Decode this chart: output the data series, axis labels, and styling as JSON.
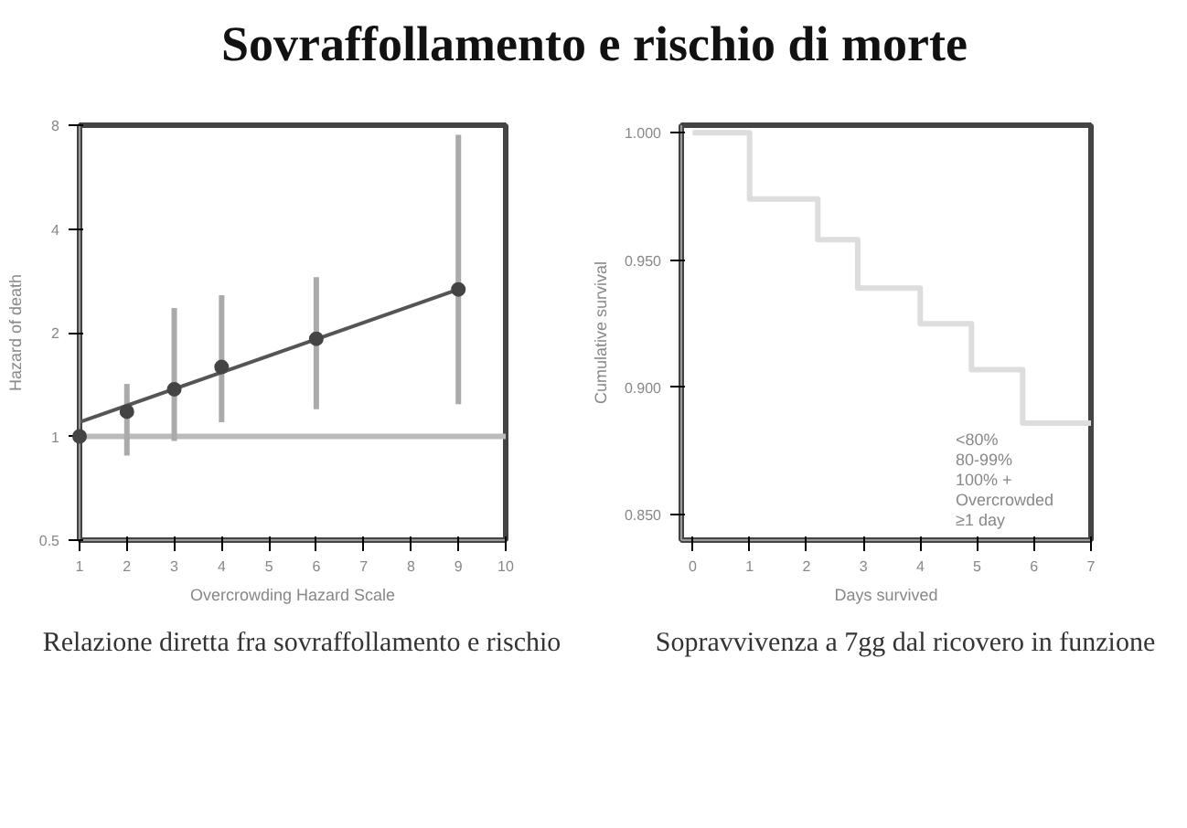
{
  "chart_data": [
    {
      "type": "scatter",
      "title": "Sovraffollamento e rischio di morte",
      "xlabel": "Overcrowding Hazard Scale",
      "ylabel": "Hazard of death",
      "x": [
        1,
        2,
        3,
        4,
        6,
        9
      ],
      "series": [
        {
          "type": "scatter",
          "marker": "circle",
          "color": "#444444",
          "values": [
            1.0,
            1.18,
            1.37,
            1.59,
            1.92,
            2.67
          ],
          "errors": [
            null,
            [
              0.88,
              1.42
            ],
            [
              0.97,
              2.36
            ],
            [
              1.1,
              2.57
            ],
            [
              1.2,
              2.9
            ],
            [
              1.24,
              7.5
            ]
          ]
        },
        {
          "type": "line",
          "color": "#555555",
          "x": [
            1,
            9
          ],
          "values": [
            1.1,
            2.67
          ]
        }
      ],
      "log": "y",
      "xlim": [
        1,
        10
      ],
      "xticks": [
        1,
        2,
        3,
        4,
        5,
        6,
        7,
        8,
        9,
        10
      ],
      "ylim": [
        0.5,
        8
      ],
      "yticks": [
        0.5,
        1,
        2,
        4,
        8
      ],
      "ref_lines": [
        {
          "axis": "y",
          "value": 1,
          "color": "#bbbbbb"
        }
      ],
      "grid": false,
      "annotations": [
        "Relazione diretta fra sovraffollamento e rischio"
      ]
    },
    {
      "type": "step",
      "xlabel": "Days survived",
      "ylabel": "Cumulative survival",
      "x": [
        0,
        1,
        2.2,
        2.9,
        4,
        4.9,
        5.8,
        7
      ],
      "series": [
        {
          "color": "#dddddd",
          "values": [
            1.0,
            0.974,
            0.958,
            0.939,
            0.925,
            0.907,
            0.886,
            0.886
          ]
        }
      ],
      "xlim": [
        -0.2,
        7
      ],
      "xticks": [
        0,
        1,
        2,
        3,
        4,
        5,
        6,
        7
      ],
      "ylim": [
        0.84,
        1.003
      ],
      "yticks": [
        {
          "value": 0.85,
          "label": "0.850"
        },
        {
          "value": 0.9,
          "label": "0.900"
        },
        {
          "value": 0.95,
          "label": "0.950"
        },
        {
          "value": 1.0,
          "label": "1.000"
        }
      ],
      "grid": false,
      "annotations": [
        "<80%",
        "80-99%",
        "100% +",
        "Overcrowded",
        "≥1 day",
        "Sopravvivenza a 7gg dal ricovero in funzione"
      ]
    }
  ]
}
